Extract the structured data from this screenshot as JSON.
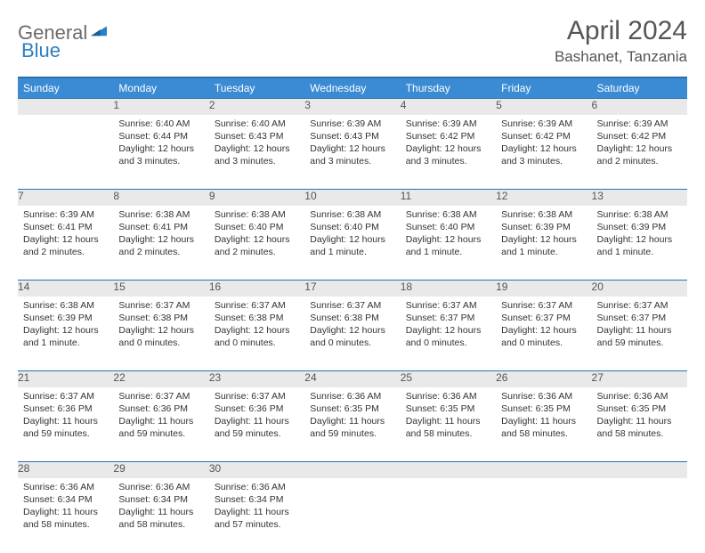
{
  "brand": {
    "part1": "General",
    "part2": "Blue"
  },
  "title": "April 2024",
  "location": "Bashanet, Tanzania",
  "colors": {
    "header_bg": "#3b8bd4",
    "header_border": "#2b6fb0",
    "daynum_bg": "#e9e9e9",
    "text": "#333333",
    "brand_gray": "#6b6b6b",
    "brand_blue": "#2b7fc3"
  },
  "weekdays": [
    "Sunday",
    "Monday",
    "Tuesday",
    "Wednesday",
    "Thursday",
    "Friday",
    "Saturday"
  ],
  "weeks": [
    [
      {
        "n": "",
        "sr": "",
        "ss": "",
        "dl": ""
      },
      {
        "n": "1",
        "sr": "Sunrise: 6:40 AM",
        "ss": "Sunset: 6:44 PM",
        "dl": "Daylight: 12 hours and 3 minutes."
      },
      {
        "n": "2",
        "sr": "Sunrise: 6:40 AM",
        "ss": "Sunset: 6:43 PM",
        "dl": "Daylight: 12 hours and 3 minutes."
      },
      {
        "n": "3",
        "sr": "Sunrise: 6:39 AM",
        "ss": "Sunset: 6:43 PM",
        "dl": "Daylight: 12 hours and 3 minutes."
      },
      {
        "n": "4",
        "sr": "Sunrise: 6:39 AM",
        "ss": "Sunset: 6:42 PM",
        "dl": "Daylight: 12 hours and 3 minutes."
      },
      {
        "n": "5",
        "sr": "Sunrise: 6:39 AM",
        "ss": "Sunset: 6:42 PM",
        "dl": "Daylight: 12 hours and 3 minutes."
      },
      {
        "n": "6",
        "sr": "Sunrise: 6:39 AM",
        "ss": "Sunset: 6:42 PM",
        "dl": "Daylight: 12 hours and 2 minutes."
      }
    ],
    [
      {
        "n": "7",
        "sr": "Sunrise: 6:39 AM",
        "ss": "Sunset: 6:41 PM",
        "dl": "Daylight: 12 hours and 2 minutes."
      },
      {
        "n": "8",
        "sr": "Sunrise: 6:38 AM",
        "ss": "Sunset: 6:41 PM",
        "dl": "Daylight: 12 hours and 2 minutes."
      },
      {
        "n": "9",
        "sr": "Sunrise: 6:38 AM",
        "ss": "Sunset: 6:40 PM",
        "dl": "Daylight: 12 hours and 2 minutes."
      },
      {
        "n": "10",
        "sr": "Sunrise: 6:38 AM",
        "ss": "Sunset: 6:40 PM",
        "dl": "Daylight: 12 hours and 1 minute."
      },
      {
        "n": "11",
        "sr": "Sunrise: 6:38 AM",
        "ss": "Sunset: 6:40 PM",
        "dl": "Daylight: 12 hours and 1 minute."
      },
      {
        "n": "12",
        "sr": "Sunrise: 6:38 AM",
        "ss": "Sunset: 6:39 PM",
        "dl": "Daylight: 12 hours and 1 minute."
      },
      {
        "n": "13",
        "sr": "Sunrise: 6:38 AM",
        "ss": "Sunset: 6:39 PM",
        "dl": "Daylight: 12 hours and 1 minute."
      }
    ],
    [
      {
        "n": "14",
        "sr": "Sunrise: 6:38 AM",
        "ss": "Sunset: 6:39 PM",
        "dl": "Daylight: 12 hours and 1 minute."
      },
      {
        "n": "15",
        "sr": "Sunrise: 6:37 AM",
        "ss": "Sunset: 6:38 PM",
        "dl": "Daylight: 12 hours and 0 minutes."
      },
      {
        "n": "16",
        "sr": "Sunrise: 6:37 AM",
        "ss": "Sunset: 6:38 PM",
        "dl": "Daylight: 12 hours and 0 minutes."
      },
      {
        "n": "17",
        "sr": "Sunrise: 6:37 AM",
        "ss": "Sunset: 6:38 PM",
        "dl": "Daylight: 12 hours and 0 minutes."
      },
      {
        "n": "18",
        "sr": "Sunrise: 6:37 AM",
        "ss": "Sunset: 6:37 PM",
        "dl": "Daylight: 12 hours and 0 minutes."
      },
      {
        "n": "19",
        "sr": "Sunrise: 6:37 AM",
        "ss": "Sunset: 6:37 PM",
        "dl": "Daylight: 12 hours and 0 minutes."
      },
      {
        "n": "20",
        "sr": "Sunrise: 6:37 AM",
        "ss": "Sunset: 6:37 PM",
        "dl": "Daylight: 11 hours and 59 minutes."
      }
    ],
    [
      {
        "n": "21",
        "sr": "Sunrise: 6:37 AM",
        "ss": "Sunset: 6:36 PM",
        "dl": "Daylight: 11 hours and 59 minutes."
      },
      {
        "n": "22",
        "sr": "Sunrise: 6:37 AM",
        "ss": "Sunset: 6:36 PM",
        "dl": "Daylight: 11 hours and 59 minutes."
      },
      {
        "n": "23",
        "sr": "Sunrise: 6:37 AM",
        "ss": "Sunset: 6:36 PM",
        "dl": "Daylight: 11 hours and 59 minutes."
      },
      {
        "n": "24",
        "sr": "Sunrise: 6:36 AM",
        "ss": "Sunset: 6:35 PM",
        "dl": "Daylight: 11 hours and 59 minutes."
      },
      {
        "n": "25",
        "sr": "Sunrise: 6:36 AM",
        "ss": "Sunset: 6:35 PM",
        "dl": "Daylight: 11 hours and 58 minutes."
      },
      {
        "n": "26",
        "sr": "Sunrise: 6:36 AM",
        "ss": "Sunset: 6:35 PM",
        "dl": "Daylight: 11 hours and 58 minutes."
      },
      {
        "n": "27",
        "sr": "Sunrise: 6:36 AM",
        "ss": "Sunset: 6:35 PM",
        "dl": "Daylight: 11 hours and 58 minutes."
      }
    ],
    [
      {
        "n": "28",
        "sr": "Sunrise: 6:36 AM",
        "ss": "Sunset: 6:34 PM",
        "dl": "Daylight: 11 hours and 58 minutes."
      },
      {
        "n": "29",
        "sr": "Sunrise: 6:36 AM",
        "ss": "Sunset: 6:34 PM",
        "dl": "Daylight: 11 hours and 58 minutes."
      },
      {
        "n": "30",
        "sr": "Sunrise: 6:36 AM",
        "ss": "Sunset: 6:34 PM",
        "dl": "Daylight: 11 hours and 57 minutes."
      },
      {
        "n": "",
        "sr": "",
        "ss": "",
        "dl": ""
      },
      {
        "n": "",
        "sr": "",
        "ss": "",
        "dl": ""
      },
      {
        "n": "",
        "sr": "",
        "ss": "",
        "dl": ""
      },
      {
        "n": "",
        "sr": "",
        "ss": "",
        "dl": ""
      }
    ]
  ]
}
